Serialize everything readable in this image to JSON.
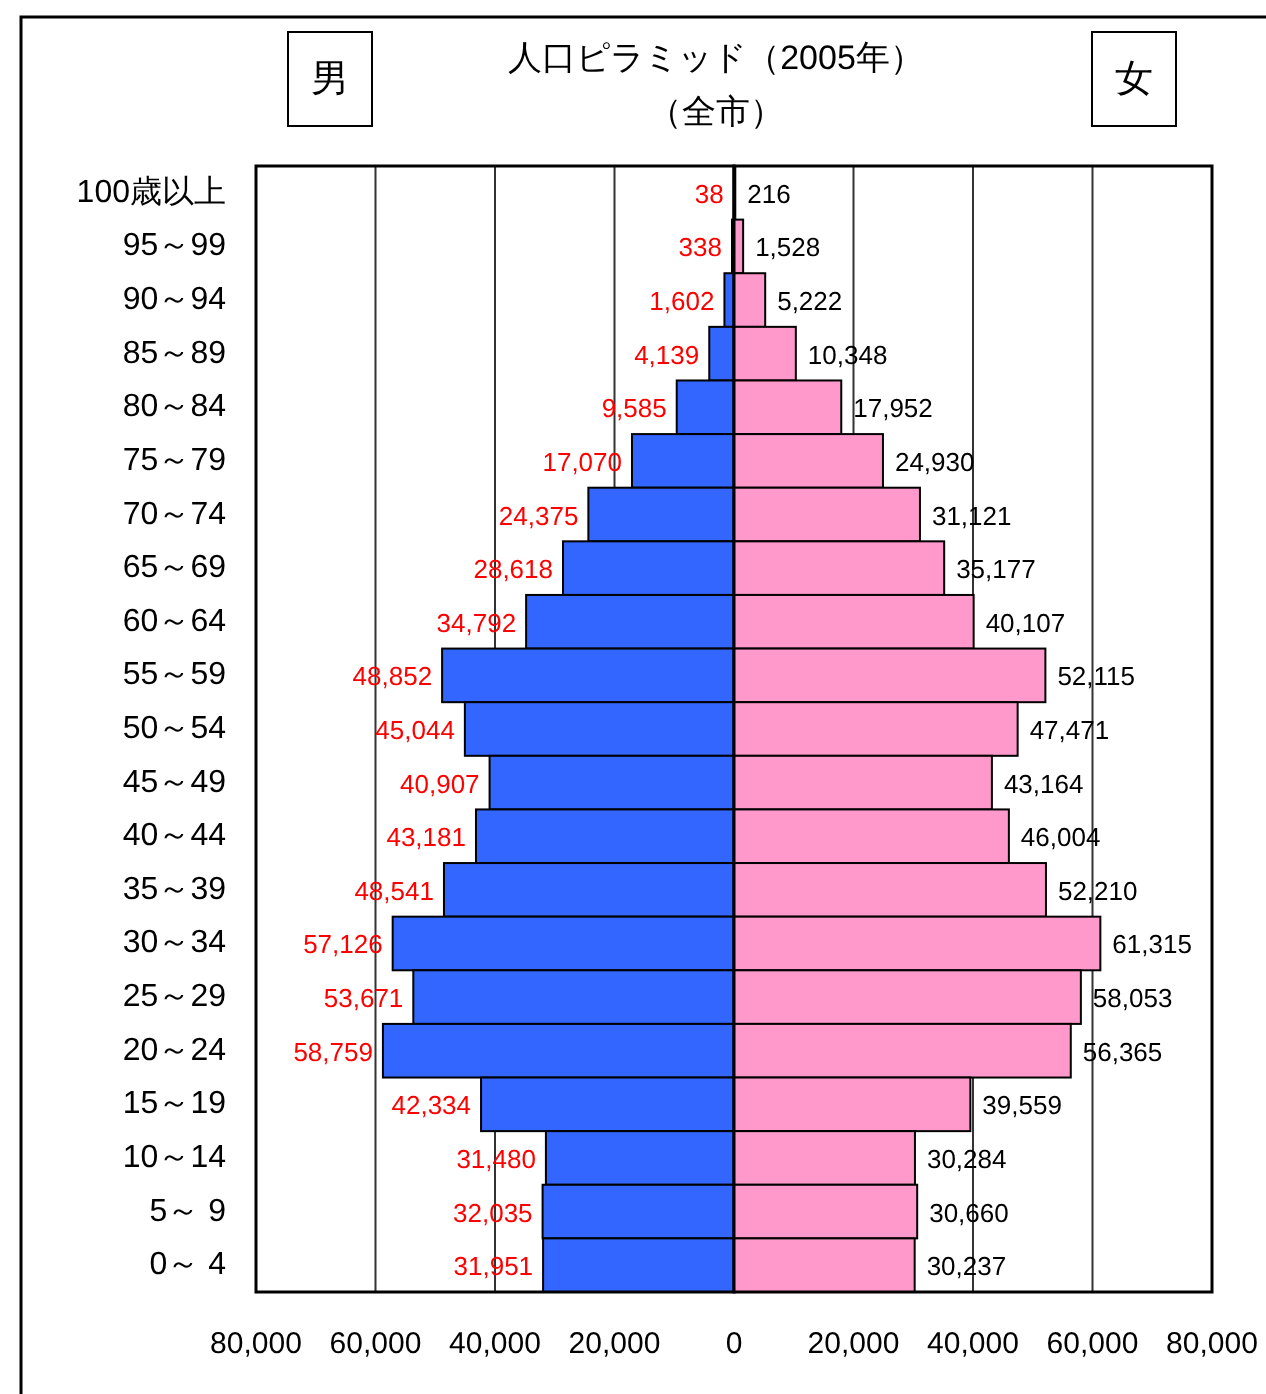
{
  "chart_data": [
    {
      "type": "bar",
      "orientation": "horizontal",
      "title": "人口ピラミッド（2005年）",
      "subtitle": "（全市）",
      "categories": [
        "100歳以上",
        "95～99",
        "90～94",
        "85～89",
        "80～84",
        "75～79",
        "70～74",
        "65～69",
        "60～64",
        "55～59",
        "50～54",
        "45～49",
        "40～44",
        "35～39",
        "30～34",
        "25～29",
        "20～24",
        "15～19",
        "10～14",
        "5～ 9",
        "0～ 4"
      ],
      "series": [
        {
          "name": "男",
          "color": "#3366ff",
          "values": [
            38,
            338,
            1602,
            4139,
            9585,
            17070,
            24375,
            28618,
            34792,
            48852,
            45044,
            40907,
            43181,
            48541,
            57126,
            53671,
            58759,
            42334,
            31480,
            32035,
            31951
          ],
          "value_labels": [
            "38",
            "338",
            "1,602",
            "4,139",
            "9,585",
            "17,070",
            "24,375",
            "28,618",
            "34,792",
            "48,852",
            "45,044",
            "40,907",
            "43,181",
            "48,541",
            "57,126",
            "53,671",
            "58,759",
            "42,334",
            "31,480",
            "32,035",
            "31,951"
          ]
        }
      ],
      "xlim": [
        80000,
        0
      ],
      "xticks": [
        {
          "value": 80000,
          "label": "80,000"
        },
        {
          "value": 60000,
          "label": "60,000"
        },
        {
          "value": 40000,
          "label": "40,000"
        },
        {
          "value": 20000,
          "label": "20,000"
        }
      ],
      "grid": "x"
    },
    {
      "type": "bar",
      "orientation": "horizontal",
      "categories": [
        null,
        null,
        null,
        null,
        null,
        null,
        null,
        null,
        null,
        null,
        null,
        null,
        null,
        null,
        null,
        null,
        null,
        null,
        null,
        null,
        null
      ],
      "series": [
        {
          "name": "女",
          "color": "#ff99cc",
          "values": [
            216,
            1528,
            5222,
            10348,
            17952,
            24930,
            31121,
            35177,
            40107,
            52115,
            47471,
            43164,
            46004,
            52210,
            61315,
            58053,
            56365,
            39559,
            30284,
            30660,
            30237
          ],
          "value_labels": [
            "216",
            "1,528",
            "5,222",
            "10,348",
            "17,952",
            "24,930",
            "31,121",
            "35,177",
            "40,107",
            "52,115",
            "47,471",
            "43,164",
            "46,004",
            "52,210",
            "61,315",
            "58,053",
            "56,365",
            "39,559",
            "30,284",
            "30,660",
            "30,237"
          ]
        }
      ],
      "xlim": [
        0,
        80000
      ],
      "xticks": [
        0,
        {
          "value": 20000,
          "label": "20,000"
        },
        {
          "value": 40000,
          "label": "40,000"
        },
        {
          "value": 60000,
          "label": "60,000"
        },
        {
          "value": 80000,
          "label": "80,000"
        }
      ],
      "grid": "x",
      "tick_labels": "x"
    }
  ]
}
